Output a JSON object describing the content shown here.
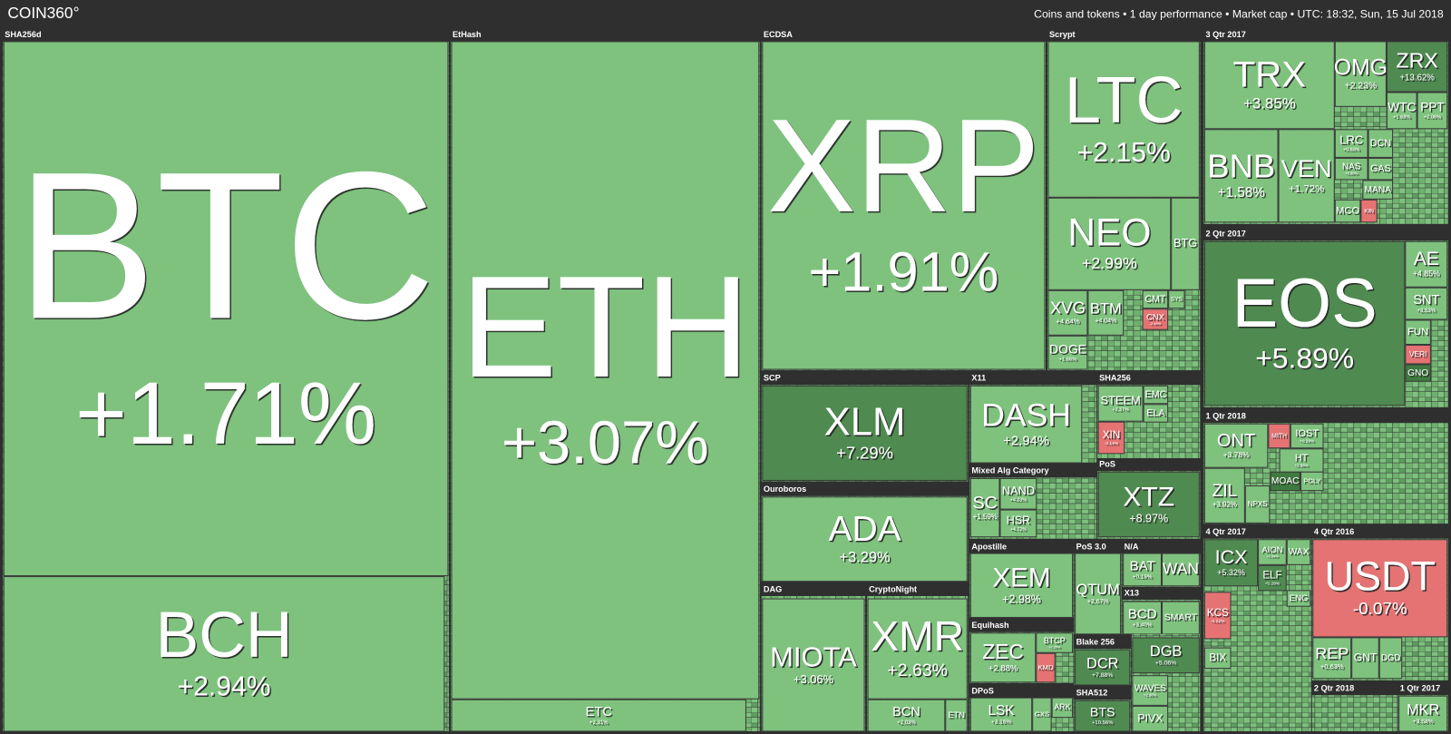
{
  "header": {
    "logo": "COIN360°",
    "info": "Coins and tokens  •  1 day performance  •  Market cap  •  UTC: 18:32, Sun, 15 Jul 2018"
  },
  "groups": [
    {
      "label": "SHA256d",
      "tiles": [
        {
          "symbol": "BTC",
          "change": "+1.71%"
        },
        {
          "symbol": "BCH",
          "change": "+2.94%"
        }
      ]
    },
    {
      "label": "EtHash",
      "tiles": [
        {
          "symbol": "ETH",
          "change": "+3.07%"
        },
        {
          "symbol": "ETC",
          "change": "+2.31%"
        }
      ]
    },
    {
      "label": "ECDSA",
      "tiles": [
        {
          "symbol": "XRP",
          "change": "+1.91%"
        }
      ]
    },
    {
      "label": "Scrypt",
      "tiles": [
        {
          "symbol": "LTC",
          "change": "+2.15%"
        },
        {
          "symbol": "NEO",
          "change": "+2.99%"
        },
        {
          "symbol": "BTG"
        },
        {
          "symbol": "XVG",
          "change": "+4.64%"
        },
        {
          "symbol": "BTM",
          "change": "+4.04%"
        },
        {
          "symbol": "DOGE",
          "change": "+1.66%"
        },
        {
          "symbol": "CMT"
        },
        {
          "symbol": "CNX",
          "change": "-2.49%"
        },
        {
          "symbol": "SYS"
        }
      ]
    },
    {
      "label": "3 Qtr 2017",
      "tiles": [
        {
          "symbol": "TRX",
          "change": "+3.85%"
        },
        {
          "symbol": "OMG",
          "change": "+2.23%"
        },
        {
          "symbol": "ZRX",
          "change": "+13.62%"
        },
        {
          "symbol": "WTC",
          "change": "+1.68%"
        },
        {
          "symbol": "PPT",
          "change": "+2.06%"
        },
        {
          "symbol": "BNB",
          "change": "+1.58%"
        },
        {
          "symbol": "VEN",
          "change": "+1.72%"
        },
        {
          "symbol": "LRC",
          "change": "+0.60%"
        },
        {
          "symbol": "DCN"
        },
        {
          "symbol": "NAS",
          "change": "+0.88%"
        },
        {
          "symbol": "GAS"
        },
        {
          "symbol": "MANA"
        },
        {
          "symbol": "MCO"
        },
        {
          "symbol": "KIN",
          "color": "#e57373"
        }
      ]
    },
    {
      "label": "2 Qtr 2017",
      "tiles": [
        {
          "symbol": "EOS",
          "change": "+5.89%"
        },
        {
          "symbol": "AE",
          "change": "+4.85%"
        },
        {
          "symbol": "SNT",
          "change": "+3.53%"
        },
        {
          "symbol": "FUN"
        },
        {
          "symbol": "VERI",
          "color": "#e57373"
        },
        {
          "symbol": "GNO",
          "color": "#3f7a40"
        }
      ]
    },
    {
      "label": "1 Qtr 2018",
      "tiles": [
        {
          "symbol": "ONT",
          "change": "+3.78%"
        },
        {
          "symbol": "ZIL",
          "change": "+3.92%"
        },
        {
          "symbol": "IOST",
          "change": "+0.29%"
        },
        {
          "symbol": "HT",
          "change": "+2.98%"
        },
        {
          "symbol": "MOAC",
          "color": "#3f7a40"
        },
        {
          "symbol": "POLY"
        },
        {
          "symbol": "NPXS"
        },
        {
          "symbol": "MITH",
          "color": "#e57373"
        }
      ]
    },
    {
      "label": "4 Qtr 2017",
      "tiles": [
        {
          "symbol": "ICX",
          "change": "+5.32%"
        },
        {
          "symbol": "AION",
          "change": "+2.94%"
        },
        {
          "symbol": "WAX"
        },
        {
          "symbol": "ELF",
          "change": "+5.28%"
        },
        {
          "symbol": "ENG"
        },
        {
          "symbol": "KCS",
          "change": "-3.22%"
        },
        {
          "symbol": "BIX"
        }
      ]
    },
    {
      "label": "4 Qtr 2016",
      "tiles": [
        {
          "symbol": "USDT",
          "change": "-0.07%"
        },
        {
          "symbol": "REP",
          "change": "+0.63%"
        },
        {
          "symbol": "GNT"
        },
        {
          "symbol": "DGD"
        }
      ]
    },
    {
      "label": "2 Qtr 2018",
      "tiles": []
    },
    {
      "label": "1 Qtr 2017",
      "tiles": [
        {
          "symbol": "MKR",
          "change": "+3.58%"
        }
      ]
    },
    {
      "label": "SCP",
      "tiles": [
        {
          "symbol": "XLM",
          "change": "+7.29%"
        }
      ]
    },
    {
      "label": "Ouroboros",
      "tiles": [
        {
          "symbol": "ADA",
          "change": "+3.29%"
        }
      ]
    },
    {
      "label": "DAG",
      "tiles": [
        {
          "symbol": "MIOTA",
          "change": "+3.06%"
        }
      ]
    },
    {
      "label": "CryptoNight",
      "tiles": [
        {
          "symbol": "XMR",
          "change": "+2.63%"
        },
        {
          "symbol": "BCN",
          "change": "+2.03%"
        },
        {
          "symbol": "ETN"
        }
      ]
    },
    {
      "label": "X11",
      "tiles": [
        {
          "symbol": "DASH",
          "change": "+2.94%"
        }
      ]
    },
    {
      "label": "SHA256",
      "tiles": [
        {
          "symbol": "STEEM",
          "change": "+2.37%"
        },
        {
          "symbol": "EMC"
        },
        {
          "symbol": "ELA"
        },
        {
          "symbol": "XIN",
          "change": "-3.14%"
        }
      ]
    },
    {
      "label": "Mixed Alg Category",
      "tiles": [
        {
          "symbol": "SC",
          "change": "+1.59%"
        },
        {
          "symbol": "NAND",
          "change": "+4.23%"
        },
        {
          "symbol": "HSR",
          "change": "+4.72%"
        }
      ]
    },
    {
      "label": "PoS",
      "tiles": [
        {
          "symbol": "XTZ",
          "change": "+8.97%"
        }
      ]
    },
    {
      "label": "Apostille",
      "tiles": [
        {
          "symbol": "XEM",
          "change": "+2.98%"
        }
      ]
    },
    {
      "label": "PoS 3.0",
      "tiles": [
        {
          "symbol": "QTUM",
          "change": "+2.67%"
        }
      ]
    },
    {
      "label": "N/A",
      "tiles": [
        {
          "symbol": "BAT",
          "change": "+0.19%"
        },
        {
          "symbol": "WAN"
        }
      ]
    },
    {
      "label": "X13",
      "tiles": [
        {
          "symbol": "BCD",
          "change": "+3.40%"
        },
        {
          "symbol": "SMART"
        }
      ]
    },
    {
      "label": "Equihash",
      "tiles": [
        {
          "symbol": "ZEC",
          "change": "+2.88%"
        },
        {
          "symbol": "BTCP",
          "change": "+2.26%"
        },
        {
          "symbol": "KMD",
          "color": "#e57373"
        }
      ]
    },
    {
      "label": "Blake 256",
      "tiles": [
        {
          "symbol": "DCR",
          "change": "+7.88%"
        }
      ]
    },
    {
      "label": "DPoS",
      "tiles": [
        {
          "symbol": "LSK",
          "change": "+3.16%"
        },
        {
          "symbol": "GXS"
        },
        {
          "symbol": "ARK"
        }
      ]
    },
    {
      "label": "SHA512",
      "tiles": [
        {
          "symbol": "BTS",
          "change": "+10.56%"
        }
      ]
    },
    {
      "tiles": [
        {
          "symbol": "DGB",
          "change": "+5.06%"
        },
        {
          "symbol": "WAVES",
          "change": "+2.96%"
        },
        {
          "symbol": "PIVX"
        }
      ]
    }
  ]
}
